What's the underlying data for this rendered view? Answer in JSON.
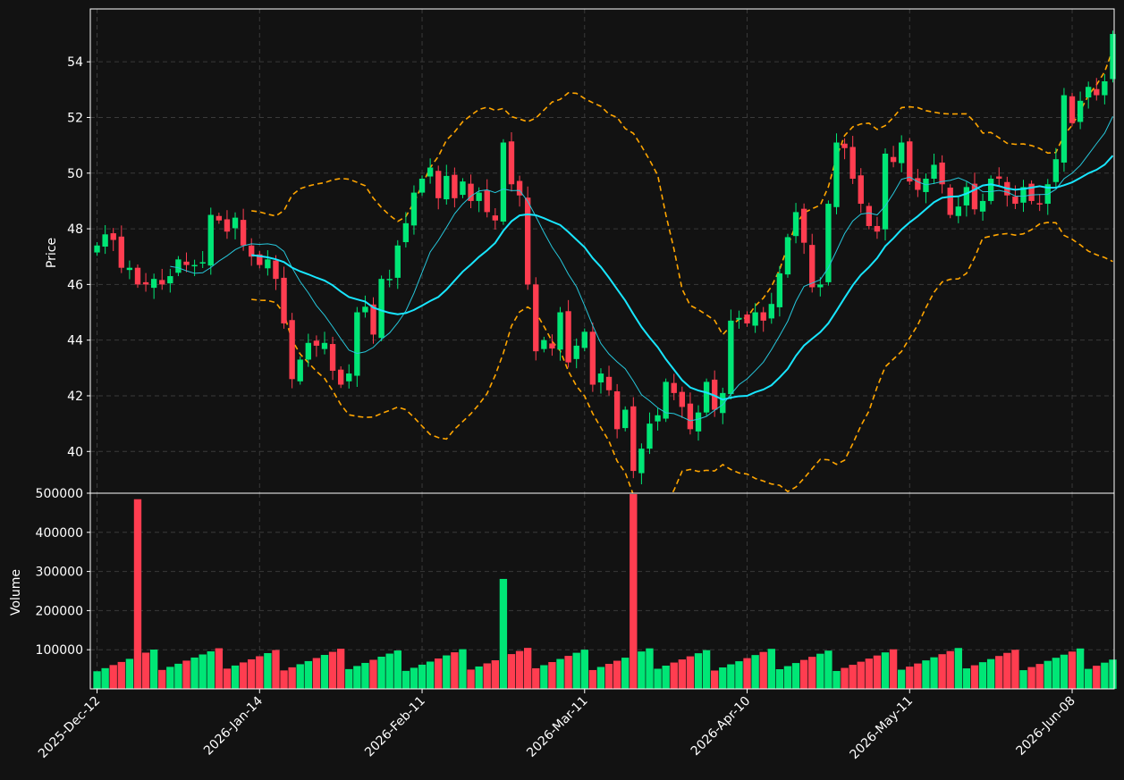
{
  "chart_data": {
    "type": "candlestick",
    "price_panel": {
      "ylabel": "Price",
      "ylim": [
        38.5,
        55.9
      ],
      "yticks": [
        40,
        42,
        44,
        46,
        48,
        50,
        52,
        54
      ]
    },
    "volume_panel": {
      "ylabel": "Volume",
      "ylim": [
        0,
        500000
      ],
      "yticks": [
        100000,
        200000,
        300000,
        400000,
        500000
      ]
    },
    "xticks": [
      {
        "label": "2025-Dec-12",
        "index": 0
      },
      {
        "label": "2026-Jan-14",
        "index": 20
      },
      {
        "label": "2026-Feb-11",
        "index": 40
      },
      {
        "label": "2026-Mar-11",
        "index": 60
      },
      {
        "label": "2026-Apr-10",
        "index": 80
      },
      {
        "label": "2026-May-11",
        "index": 100
      },
      {
        "label": "2026-Jun-08",
        "index": 120
      }
    ],
    "colors": {
      "background": "#121212",
      "up": "#00e676",
      "down": "#ff3d50",
      "sma_short": "#26c6da",
      "sma_long": "#18e6ff",
      "bollinger": "#ffa500",
      "grid": "#3a3a3a",
      "frame": "#ffffff"
    },
    "close": [
      47.4,
      47.8,
      47.6,
      46.6,
      46.6,
      46.0,
      46.0,
      46.2,
      46.0,
      46.3,
      46.9,
      46.7,
      46.7,
      46.8,
      48.5,
      48.3,
      47.9,
      48.4,
      47.4,
      47.0,
      46.7,
      46.9,
      46.2,
      44.6,
      42.6,
      43.3,
      43.9,
      43.8,
      43.9,
      42.9,
      42.4,
      42.8,
      45.0,
      45.2,
      44.2,
      46.2,
      46.2,
      47.4,
      48.2,
      49.3,
      49.8,
      50.2,
      49.1,
      49.9,
      49.1,
      49.7,
      49.0,
      49.3,
      48.6,
      48.3,
      51.1,
      49.6,
      49.2,
      46.0,
      43.6,
      44.0,
      43.7,
      45.0,
      43.2,
      43.8,
      44.3,
      42.4,
      42.8,
      42.2,
      40.8,
      41.5,
      39.3,
      40.1,
      41.0,
      41.3,
      42.5,
      42.1,
      41.6,
      40.8,
      41.4,
      42.5,
      41.5,
      42.1,
      44.7,
      44.8,
      44.6,
      45.0,
      44.7,
      45.3,
      46.4,
      47.7,
      48.6,
      47.5,
      45.9,
      46.0,
      48.9,
      51.1,
      50.9,
      49.8,
      48.9,
      48.1,
      47.9,
      50.7,
      50.4,
      51.1,
      49.7,
      49.4,
      49.8,
      50.3,
      49.6,
      48.5,
      48.8,
      49.5,
      48.7,
      49.0,
      49.8,
      49.8,
      49.2,
      48.9,
      49.5,
      49.0,
      48.9,
      49.6,
      50.5,
      52.8,
      51.8,
      52.6,
      53.1,
      52.8,
      53.3,
      55.0
    ]
  }
}
